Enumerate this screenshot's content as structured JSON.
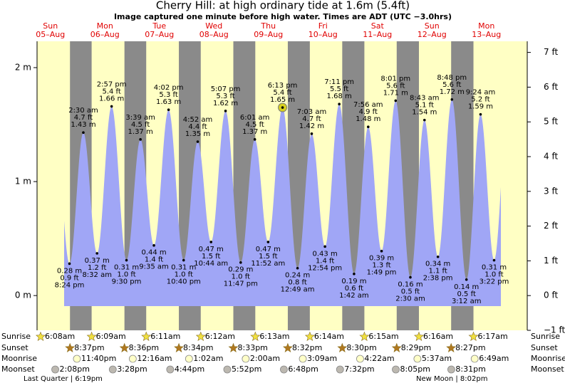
{
  "chart_data": {
    "type": "tide",
    "title": "Cherry Hill: at high  ordinary tide at 1.6m (5.4ft)",
    "subtitle": "Image captured one minute before high water. Times are ADT (UTC −3.0hrs)",
    "days": [
      "Sun",
      "Mon",
      "Tue",
      "Wed",
      "Thu",
      "Fri",
      "Sat",
      "Sun",
      "Mon"
    ],
    "dates": [
      "05–Aug",
      "06–Aug",
      "07–Aug",
      "08–Aug",
      "09–Aug",
      "10–Aug",
      "11–Aug",
      "12–Aug",
      "13–Aug"
    ],
    "x": [
      "8:24 pm",
      "2:30 am",
      "8:32 am",
      "2:57 pm",
      "9:30 pm",
      "3:39 am",
      "9:35 am",
      "4:02 pm",
      "10:40 pm",
      "4:52 am",
      "10:44 am",
      "5:07 pm",
      "11:47 pm",
      "6:01 am",
      "11:52 am",
      "6:13 pm",
      "12:49 am",
      "7:03 am",
      "12:54 pm",
      "7:11 pm",
      "1:42 am",
      "7:56 am",
      "1:49 pm",
      "8:01 pm",
      "2:30 am",
      "8:43 am",
      "2:38 pm",
      "8:48 pm",
      "3:12 am",
      "9:24 am",
      "3:22 pm"
    ],
    "values": [
      0.28,
      1.43,
      0.37,
      1.66,
      0.31,
      1.37,
      0.44,
      1.63,
      0.31,
      1.35,
      0.47,
      1.62,
      0.29,
      1.37,
      0.47,
      1.65,
      0.24,
      1.42,
      0.43,
      1.68,
      0.19,
      1.48,
      0.39,
      1.71,
      0.16,
      1.54,
      0.34,
      1.72,
      0.14,
      1.59,
      0.31
    ],
    "value_labels": [
      "0.28 m",
      "1.43 m",
      "0.37 m",
      "1.66 m",
      "0.31 m",
      "1.37 m",
      "0.44 m",
      "1.63 m",
      "0.31 m",
      "1.35 m",
      "0.47 m",
      "1.62 m",
      "0.29 m",
      "1.37 m",
      "0.47 m",
      "1.65 m",
      "0.24 m",
      "1.42 m",
      "0.43 m",
      "1.68 m",
      "0.19 m",
      "1.48 m",
      "0.39 m",
      "1.71 m",
      "0.16 m",
      "1.54 m",
      "0.34 m",
      "1.72 m",
      "0.14 m",
      "1.59 m",
      "0.31 m"
    ],
    "ft_labels": [
      "0.9 ft",
      "4.7 ft",
      "1.2 ft",
      "5.4 ft",
      "1.0 ft",
      "4.5 ft",
      "1.4 ft",
      "5.3 ft",
      "1.0 ft",
      "4.4 ft",
      "1.5 ft",
      "5.3 ft",
      "1.0 ft",
      "4.5 ft",
      "1.5 ft",
      "5.4 ft",
      "0.8 ft",
      "4.7 ft",
      "1.4 ft",
      "5.5 ft",
      "0.6 ft",
      "4.9 ft",
      "1.3 ft",
      "5.6 ft",
      "0.5 ft",
      "5.1 ft",
      "1.1 ft",
      "5.6 ft",
      "0.5 ft",
      "5.2 ft",
      "1.0 ft"
    ],
    "ylim": [
      -0.305,
      2.231
    ],
    "yticks": [
      {
        "value": 0,
        "label": "0 m"
      },
      {
        "value": 1,
        "label": "1 m"
      },
      {
        "value": 2,
        "label": "2 m"
      }
    ],
    "y2lim": [
      -1,
      7.32
    ],
    "y2ticks": [
      {
        "value": -1,
        "label": "−1 ft"
      },
      {
        "value": 0,
        "label": "0 ft"
      },
      {
        "value": 1,
        "label": "1 ft"
      },
      {
        "value": 2,
        "label": "2 ft"
      },
      {
        "value": 3,
        "label": "3 ft"
      },
      {
        "value": 4,
        "label": "4 ft"
      },
      {
        "value": 5,
        "label": "5 ft"
      },
      {
        "value": 6,
        "label": "6 ft"
      },
      {
        "value": 7,
        "label": "7 ft"
      }
    ],
    "color": "#a0a6f6",
    "day_color": "#ffffc4",
    "night_color": "#8a8a8a",
    "sunrise": {
      "label": "Sunrise",
      "times": [
        "6:08am",
        "6:09am",
        "6:11am",
        "6:12am",
        "6:13am",
        "6:14am",
        "6:15am",
        "6:16am",
        "6:17am"
      ]
    },
    "sunset": {
      "label": "Sunset",
      "times": [
        "8:37pm",
        "8:36pm",
        "8:34pm",
        "8:33pm",
        "8:32pm",
        "8:30pm",
        "8:29pm",
        "8:27pm",
        null
      ]
    },
    "moonrise": {
      "label": "Moonrise",
      "times": [
        "11:40pm",
        null,
        "12:16am",
        "1:02am",
        "2:00am",
        "3:09am",
        "4:22am",
        "5:37am",
        "6:49am"
      ]
    },
    "moonset": {
      "label": "Moonset",
      "times": [
        "2:08pm",
        "3:28pm",
        "4:44pm",
        "5:52pm",
        "6:48pm",
        "7:32pm",
        "8:05pm",
        "8:31pm",
        null
      ]
    },
    "moon_phases": [
      "Last Quarter | 6:19pm",
      "New Moon | 8:02pm"
    ]
  }
}
